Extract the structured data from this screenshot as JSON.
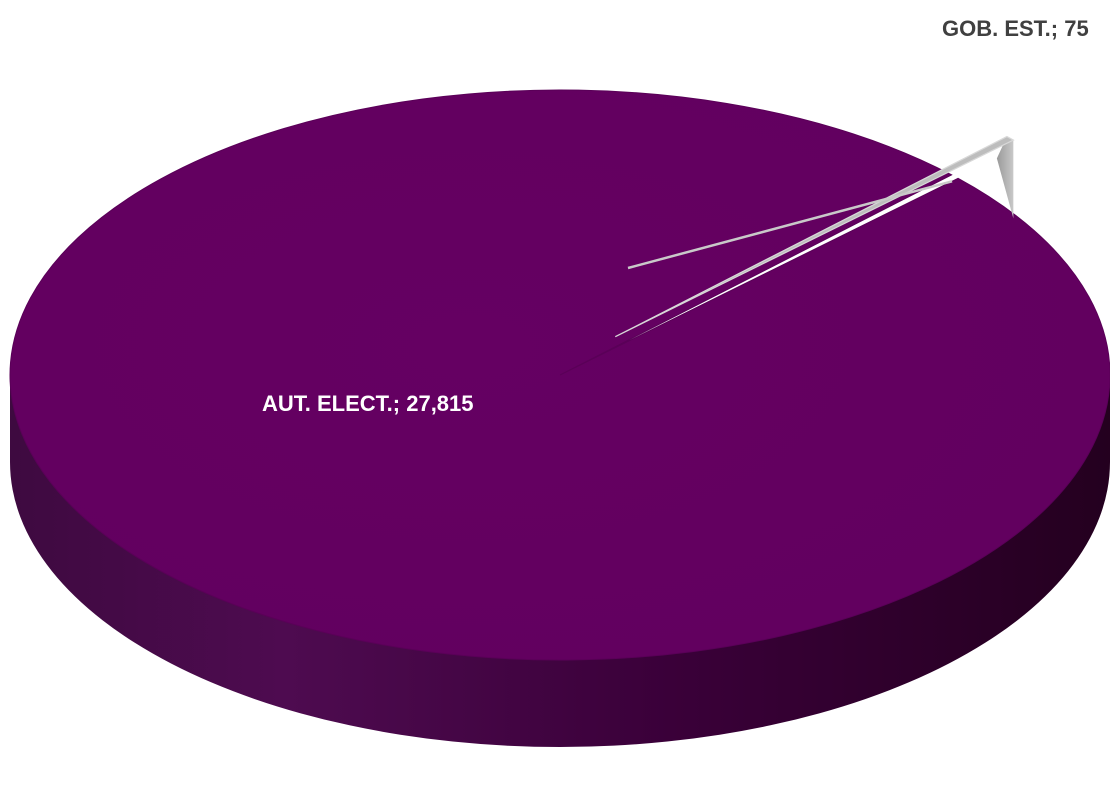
{
  "chart_data": {
    "type": "pie",
    "title": "",
    "slices": [
      {
        "label": "AUT. ELECT.",
        "value": 27815,
        "color": "#62005f",
        "label_text": "AUT. ELECT.; 27,815"
      },
      {
        "label": "GOB. EST.",
        "value": 75,
        "color": "#bdbdbd",
        "label_text": "GOB. EST.; 75"
      }
    ],
    "legend": "none",
    "style": "3d",
    "exploded_slice": "GOB. EST."
  }
}
